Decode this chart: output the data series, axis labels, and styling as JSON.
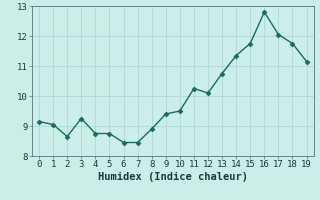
{
  "x": [
    0,
    1,
    2,
    3,
    4,
    5,
    6,
    7,
    8,
    9,
    10,
    11,
    12,
    13,
    14,
    15,
    16,
    17,
    18,
    19
  ],
  "y": [
    9.15,
    9.05,
    8.65,
    9.25,
    8.75,
    8.75,
    8.45,
    8.45,
    8.9,
    9.4,
    9.5,
    10.25,
    10.1,
    10.75,
    11.35,
    11.75,
    12.8,
    12.05,
    11.75,
    11.15
  ],
  "line_color": "#1a6b5a",
  "marker": "D",
  "marker_size": 2.5,
  "bg_color": "#cceee8",
  "grid_color": "#b0d8d4",
  "xlabel": "Humidex (Indice chaleur)",
  "ylim": [
    8,
    13
  ],
  "xlim": [
    -0.5,
    19.5
  ],
  "yticks": [
    8,
    9,
    10,
    11,
    12,
    13
  ],
  "xticks": [
    0,
    1,
    2,
    3,
    4,
    5,
    6,
    7,
    8,
    9,
    10,
    11,
    12,
    13,
    14,
    15,
    16,
    17,
    18,
    19
  ],
  "xlabel_fontsize": 7.5,
  "tick_fontsize": 6.5,
  "line_width": 1.0
}
